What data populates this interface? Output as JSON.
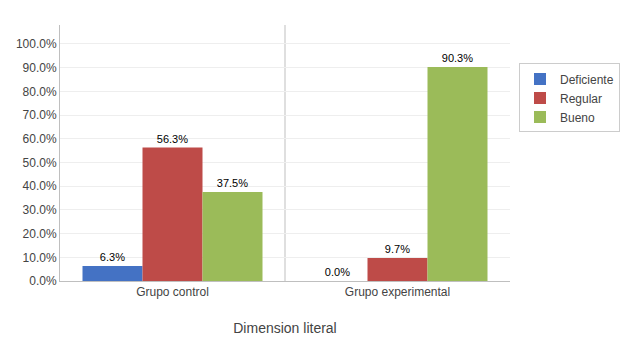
{
  "chart_data": {
    "type": "bar",
    "categories": [
      "Grupo control",
      "Grupo experimental"
    ],
    "series": [
      {
        "name": "Deficiente",
        "color": "#4472C4",
        "values": [
          6.3,
          0.0
        ],
        "value_labels": [
          "6.3%",
          "0.0%"
        ]
      },
      {
        "name": "Regular",
        "color": "#BE4B48",
        "values": [
          56.3,
          9.7
        ],
        "value_labels": [
          "56.3%",
          "9.7%"
        ]
      },
      {
        "name": "Bueno",
        "color": "#9BBB59",
        "values": [
          37.5,
          90.3
        ],
        "value_labels": [
          "37.5%",
          "90.3%"
        ]
      }
    ],
    "x_label": "Dimension literal",
    "ylim": [
      0,
      108
    ],
    "yticks": [
      {
        "value": 0,
        "label": "0.0%"
      },
      {
        "value": 10,
        "label": "10.0%"
      },
      {
        "value": 20,
        "label": "20.0%"
      },
      {
        "value": 30,
        "label": "30.0%"
      },
      {
        "value": 40,
        "label": "40.0%"
      },
      {
        "value": 50,
        "label": "50.0%"
      },
      {
        "value": 60,
        "label": "60.0%"
      },
      {
        "value": 70,
        "label": "70.0%"
      },
      {
        "value": 80,
        "label": "80.0%"
      },
      {
        "value": 90,
        "label": "90.0%"
      },
      {
        "value": 100,
        "label": "100.0%"
      }
    ],
    "grid": true,
    "legend": "right",
    "data_labels": true
  }
}
